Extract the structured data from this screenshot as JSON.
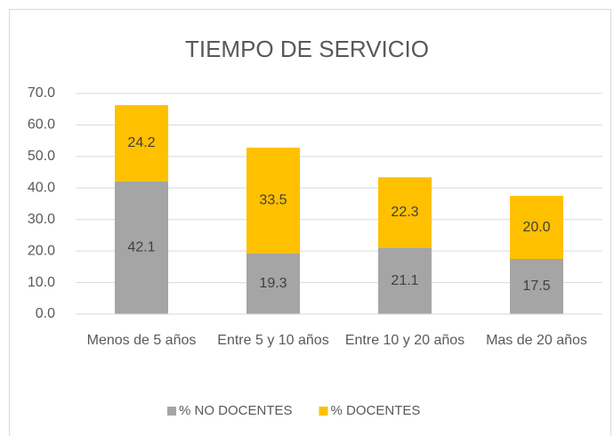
{
  "chart_data": {
    "type": "stacked_bar",
    "title": "TIEMPO DE SERVICIO",
    "categories": [
      "Menos de 5 años",
      "Entre 5 y 10 años",
      "Entre 10 y 20 años",
      "Mas de 20 años"
    ],
    "series": [
      {
        "name": "% NO DOCENTES",
        "color": "#a5a5a5",
        "values": [
          42.1,
          19.3,
          21.1,
          17.5
        ],
        "value_labels": [
          "42.1",
          "19.3",
          "21.1",
          "17.5"
        ]
      },
      {
        "name": "% DOCENTES",
        "color": "#ffc000",
        "values": [
          24.2,
          33.5,
          22.3,
          20.0
        ],
        "value_labels": [
          "24.2",
          "33.5",
          "22.3",
          "20.0"
        ]
      }
    ],
    "ylim": [
      0,
      70
    ],
    "yticks": [
      {
        "value": 0,
        "label": "0.0"
      },
      {
        "value": 10,
        "label": "10.0"
      },
      {
        "value": 20,
        "label": "20.0"
      },
      {
        "value": 30,
        "label": "30.0"
      },
      {
        "value": 40,
        "label": "40.0"
      },
      {
        "value": 50,
        "label": "50.0"
      },
      {
        "value": 60,
        "label": "60.0"
      },
      {
        "value": 70,
        "label": "70.0"
      }
    ],
    "grid": true,
    "legend": "bottom"
  }
}
